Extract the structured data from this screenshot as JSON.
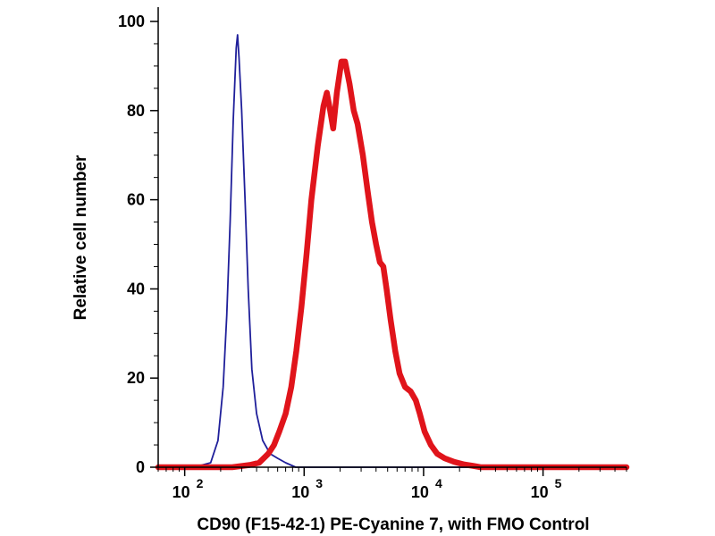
{
  "chart_data": {
    "type": "line",
    "title": "",
    "xlabel": "CD90 (F15-42-1) PE-Cyanine 7, with FMO Control",
    "ylabel": "Relative cell number",
    "x_scale": "log",
    "xlim": [
      60,
      500000
    ],
    "ylim": [
      0,
      100
    ],
    "grid": false,
    "legend": "none",
    "x_ticks": [
      {
        "value": 100,
        "base": "10",
        "exp": "2"
      },
      {
        "value": 1000,
        "base": "10",
        "exp": "3"
      },
      {
        "value": 10000,
        "base": "10",
        "exp": "4"
      },
      {
        "value": 100000,
        "base": "10",
        "exp": "5"
      }
    ],
    "y_ticks": [
      {
        "value": 0,
        "label": "0"
      },
      {
        "value": 20,
        "label": "20"
      },
      {
        "value": 40,
        "label": "40"
      },
      {
        "value": 60,
        "label": "60"
      },
      {
        "value": 80,
        "label": "80"
      },
      {
        "value": 100,
        "label": "100"
      }
    ],
    "series": [
      {
        "color": "#1f1f9a",
        "line_weight": "thin",
        "points": [
          [
            60,
            0
          ],
          [
            120,
            0
          ],
          [
            165,
            1
          ],
          [
            190,
            6
          ],
          [
            210,
            18
          ],
          [
            225,
            34
          ],
          [
            240,
            55
          ],
          [
            255,
            78
          ],
          [
            270,
            94
          ],
          [
            277,
            97
          ],
          [
            285,
            92
          ],
          [
            300,
            80
          ],
          [
            320,
            60
          ],
          [
            340,
            40
          ],
          [
            365,
            22
          ],
          [
            400,
            12
          ],
          [
            450,
            6
          ],
          [
            520,
            3
          ],
          [
            600,
            2
          ],
          [
            700,
            1
          ],
          [
            850,
            0
          ],
          [
            1000,
            0
          ],
          [
            10000,
            0
          ],
          [
            500000,
            0
          ]
        ]
      },
      {
        "color": "#e0141b",
        "line_weight": "thick",
        "points": [
          [
            60,
            0
          ],
          [
            250,
            0
          ],
          [
            350,
            0.5
          ],
          [
            420,
            1
          ],
          [
            500,
            3
          ],
          [
            560,
            5
          ],
          [
            620,
            8
          ],
          [
            700,
            12
          ],
          [
            780,
            18
          ],
          [
            860,
            26
          ],
          [
            950,
            36
          ],
          [
            1050,
            48
          ],
          [
            1150,
            60
          ],
          [
            1300,
            72
          ],
          [
            1450,
            81
          ],
          [
            1550,
            84
          ],
          [
            1650,
            80
          ],
          [
            1750,
            76
          ],
          [
            1880,
            84
          ],
          [
            2050,
            91
          ],
          [
            2200,
            91
          ],
          [
            2400,
            86
          ],
          [
            2600,
            80
          ],
          [
            2800,
            77
          ],
          [
            3100,
            70
          ],
          [
            3400,
            62
          ],
          [
            3700,
            55
          ],
          [
            4000,
            50
          ],
          [
            4300,
            46
          ],
          [
            4600,
            45
          ],
          [
            4900,
            40
          ],
          [
            5300,
            33
          ],
          [
            5800,
            26
          ],
          [
            6300,
            21
          ],
          [
            7000,
            18
          ],
          [
            7800,
            17
          ],
          [
            8600,
            15
          ],
          [
            9300,
            12
          ],
          [
            10200,
            8
          ],
          [
            11500,
            5
          ],
          [
            13000,
            3
          ],
          [
            15000,
            2
          ],
          [
            18000,
            1.2
          ],
          [
            22000,
            0.6
          ],
          [
            26000,
            0.3
          ],
          [
            30000,
            0
          ],
          [
            500000,
            0
          ]
        ]
      }
    ]
  }
}
